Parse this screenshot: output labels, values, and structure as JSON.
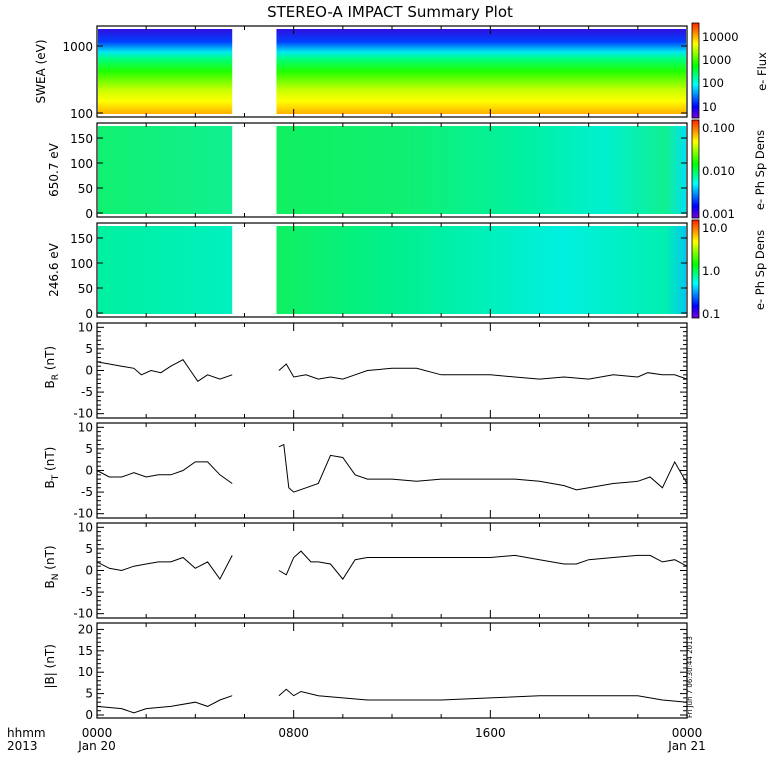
{
  "title": "STEREO-A IMPACT Summary Plot",
  "timestamp": "Fri Jun  7 06:30:44 2013",
  "x_axis": {
    "left_labels": [
      "hhmm",
      "2013"
    ],
    "ticks": [
      {
        "hour": 0,
        "line1": "0000",
        "line2": "Jan 20"
      },
      {
        "hour": 8,
        "line1": "0800",
        "line2": ""
      },
      {
        "hour": 16,
        "line1": "1600",
        "line2": ""
      },
      {
        "hour": 24,
        "line1": "0000",
        "line2": "Jan 21"
      }
    ],
    "range_hours": [
      0,
      24
    ]
  },
  "data_gap_hours": [
    5.5,
    7.3
  ],
  "chart_data": [
    {
      "type": "heatmap",
      "name": "swea",
      "ylabel": "SWEA (eV)",
      "yscale": "log",
      "ylim": [
        95,
        1700
      ],
      "yticks": [
        "1000",
        "100"
      ],
      "colorbar_label": "e- Flux",
      "colorbar_ticks": [
        "10000",
        "1000",
        "100",
        "10"
      ]
    },
    {
      "type": "heatmap",
      "name": "pad650",
      "ylabel": "650.7 eV",
      "ylim": [
        -10,
        180
      ],
      "yticks": [
        "150",
        "100",
        "50",
        "0"
      ],
      "colorbar_label": "e- Ph Sp Dens",
      "colorbar_ticks": [
        "0.100",
        "0.010",
        "0.001"
      ]
    },
    {
      "type": "heatmap",
      "name": "pad246",
      "ylabel": "246.6 eV",
      "ylim": [
        -10,
        180
      ],
      "yticks": [
        "150",
        "100",
        "50",
        "0"
      ],
      "colorbar_label": "e- Ph Sp Dens",
      "colorbar_ticks": [
        "10.0",
        "1.0",
        "0.1"
      ]
    },
    {
      "type": "line",
      "name": "br",
      "ylabel": "B",
      "ysub": "R",
      "yunit": "(nT)",
      "ylim": [
        -11,
        11
      ],
      "yticks": [
        10,
        5,
        0,
        -5,
        -10
      ],
      "points": [
        [
          0,
          2
        ],
        [
          0.5,
          1.5
        ],
        [
          1,
          1
        ],
        [
          1.5,
          0.5
        ],
        [
          1.8,
          -1
        ],
        [
          2.2,
          0
        ],
        [
          2.6,
          -0.5
        ],
        [
          3,
          1
        ],
        [
          3.5,
          2.5
        ],
        [
          3.8,
          0
        ],
        [
          4.1,
          -2.5
        ],
        [
          4.5,
          -1
        ],
        [
          5,
          -2
        ],
        [
          5.5,
          -1
        ],
        null,
        [
          7.4,
          0
        ],
        [
          7.7,
          1.5
        ],
        [
          8,
          -1.5
        ],
        [
          8.5,
          -1
        ],
        [
          9,
          -2
        ],
        [
          9.5,
          -1.5
        ],
        [
          10,
          -2
        ],
        [
          10.5,
          -1
        ],
        [
          11,
          0
        ],
        [
          12,
          0.5
        ],
        [
          13,
          0.5
        ],
        [
          14,
          -1
        ],
        [
          15,
          -1
        ],
        [
          16,
          -1
        ],
        [
          17,
          -1.5
        ],
        [
          18,
          -2
        ],
        [
          19,
          -1.5
        ],
        [
          20,
          -2
        ],
        [
          21,
          -1
        ],
        [
          22,
          -1.5
        ],
        [
          22.4,
          -0.5
        ],
        [
          23,
          -1
        ],
        [
          23.5,
          -1
        ],
        [
          24,
          -2
        ]
      ]
    },
    {
      "type": "line",
      "name": "bt",
      "ylabel": "B",
      "ysub": "T",
      "yunit": "(nT)",
      "ylim": [
        -11,
        11
      ],
      "yticks": [
        10,
        5,
        0,
        -5,
        -10
      ],
      "points": [
        [
          0,
          0
        ],
        [
          0.5,
          -1.5
        ],
        [
          1,
          -1.5
        ],
        [
          1.5,
          -0.5
        ],
        [
          2,
          -1.5
        ],
        [
          2.5,
          -1
        ],
        [
          3,
          -1
        ],
        [
          3.5,
          0
        ],
        [
          4,
          2
        ],
        [
          4.5,
          2
        ],
        [
          5,
          -1
        ],
        [
          5.5,
          -3
        ],
        null,
        [
          7.4,
          5.5
        ],
        [
          7.6,
          6
        ],
        [
          7.8,
          -4
        ],
        [
          8,
          -5
        ],
        [
          8.5,
          -4
        ],
        [
          9,
          -3
        ],
        [
          9.5,
          3.5
        ],
        [
          10,
          3
        ],
        [
          10.5,
          -1
        ],
        [
          11,
          -2
        ],
        [
          12,
          -2
        ],
        [
          13,
          -2.5
        ],
        [
          14,
          -2
        ],
        [
          15,
          -2
        ],
        [
          16,
          -2
        ],
        [
          17,
          -2
        ],
        [
          18,
          -2.5
        ],
        [
          19,
          -3.5
        ],
        [
          19.5,
          -4.5
        ],
        [
          20,
          -4
        ],
        [
          21,
          -3
        ],
        [
          22,
          -2.5
        ],
        [
          22.5,
          -1.5
        ],
        [
          23,
          -4
        ],
        [
          23.5,
          2
        ],
        [
          24,
          -3
        ]
      ]
    },
    {
      "type": "line",
      "name": "bn",
      "ylabel": "B",
      "ysub": "N",
      "yunit": "(nT)",
      "ylim": [
        -11,
        11
      ],
      "yticks": [
        10,
        5,
        0,
        -5,
        -10
      ],
      "points": [
        [
          0,
          2
        ],
        [
          0.5,
          0.5
        ],
        [
          1,
          0
        ],
        [
          1.5,
          1
        ],
        [
          2,
          1.5
        ],
        [
          2.5,
          2
        ],
        [
          3,
          2
        ],
        [
          3.5,
          3
        ],
        [
          4,
          0.5
        ],
        [
          4.5,
          2
        ],
        [
          5,
          -2
        ],
        [
          5.5,
          3.5
        ],
        null,
        [
          7.4,
          0
        ],
        [
          7.7,
          -1
        ],
        [
          8,
          3
        ],
        [
          8.3,
          4.5
        ],
        [
          8.7,
          2
        ],
        [
          9,
          2
        ],
        [
          9.5,
          1.5
        ],
        [
          10,
          -2
        ],
        [
          10.5,
          2.5
        ],
        [
          11,
          3
        ],
        [
          12,
          3
        ],
        [
          13,
          3
        ],
        [
          14,
          3
        ],
        [
          15,
          3
        ],
        [
          16,
          3
        ],
        [
          17,
          3.5
        ],
        [
          18,
          2.5
        ],
        [
          19,
          1.5
        ],
        [
          19.5,
          1.5
        ],
        [
          20,
          2.5
        ],
        [
          21,
          3
        ],
        [
          22,
          3.5
        ],
        [
          22.5,
          3.5
        ],
        [
          23,
          2
        ],
        [
          23.5,
          2.5
        ],
        [
          24,
          1
        ]
      ]
    },
    {
      "type": "line",
      "name": "bmag",
      "ylabel": "|B|",
      "ysub": "",
      "yunit": "(nT)",
      "ylim": [
        -0.7,
        21.5
      ],
      "yticks": [
        20,
        15,
        10,
        5,
        0
      ],
      "points": [
        [
          0,
          2
        ],
        [
          1,
          1.5
        ],
        [
          1.5,
          0.5
        ],
        [
          2,
          1.5
        ],
        [
          3,
          2
        ],
        [
          4,
          3
        ],
        [
          4.5,
          2
        ],
        [
          5,
          3.5
        ],
        [
          5.5,
          4.5
        ],
        null,
        [
          7.4,
          4.5
        ],
        [
          7.7,
          6
        ],
        [
          8,
          4.5
        ],
        [
          8.3,
          5.5
        ],
        [
          9,
          4.5
        ],
        [
          10,
          4
        ],
        [
          11,
          3.5
        ],
        [
          12,
          3.5
        ],
        [
          14,
          3.5
        ],
        [
          16,
          4
        ],
        [
          18,
          4.5
        ],
        [
          20,
          4.5
        ],
        [
          22,
          4.5
        ],
        [
          23,
          3.5
        ],
        [
          24,
          3
        ]
      ]
    }
  ]
}
